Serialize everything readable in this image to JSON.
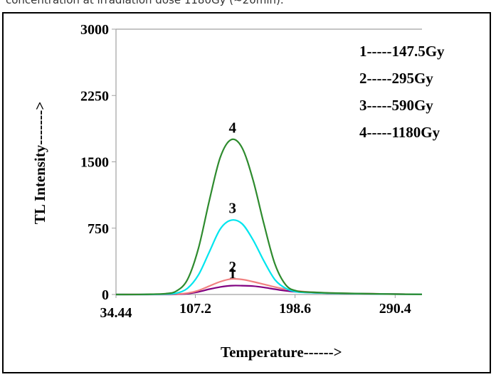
{
  "caption": "concentration at irradiation dose 1180Gy (~20min).",
  "chart_data": {
    "type": "line",
    "title": "",
    "xlabel": "Temperature------>",
    "ylabel": "TL Intensity------->",
    "xlim": [
      34.44,
      315
    ],
    "ylim": [
      0,
      3000
    ],
    "x_ticks": [
      "34.44",
      "107.2",
      "198.6",
      "290.4"
    ],
    "y_ticks": [
      "0",
      "750",
      "1500",
      "2250",
      "3000"
    ],
    "grid": false,
    "legend_position": "top-right",
    "legend": [
      "1-----147.5Gy",
      "2-----295Gy",
      "3-----590Gy",
      "4-----1180Gy"
    ],
    "x": [
      34.44,
      60,
      80,
      90,
      100,
      110,
      120,
      130,
      140,
      150,
      160,
      170,
      180,
      190,
      200,
      215,
      230,
      250,
      270,
      290.4,
      315
    ],
    "series": [
      {
        "name": "1",
        "label": "1",
        "color": "#800080",
        "values": [
          0,
          0,
          0,
          2,
          10,
          30,
          60,
          85,
          100,
          100,
          95,
          80,
          60,
          42,
          30,
          20,
          15,
          10,
          8,
          5,
          2
        ]
      },
      {
        "name": "2",
        "label": "2",
        "color": "#f08080",
        "values": [
          0,
          0,
          2,
          5,
          15,
          45,
          95,
          145,
          175,
          170,
          145,
          115,
          85,
          60,
          40,
          25,
          17,
          11,
          8,
          5,
          2
        ]
      },
      {
        "name": "3",
        "label": "3",
        "color": "#00e5ee",
        "values": [
          0,
          0,
          5,
          15,
          70,
          220,
          480,
          740,
          840,
          800,
          620,
          380,
          170,
          70,
          30,
          20,
          15,
          10,
          7,
          4,
          2
        ]
      },
      {
        "name": "4",
        "label": "4",
        "color": "#2e8b2e",
        "values": [
          0,
          2,
          10,
          40,
          170,
          520,
          1060,
          1550,
          1750,
          1660,
          1300,
          800,
          350,
          110,
          40,
          25,
          18,
          12,
          8,
          4,
          2
        ]
      }
    ]
  }
}
